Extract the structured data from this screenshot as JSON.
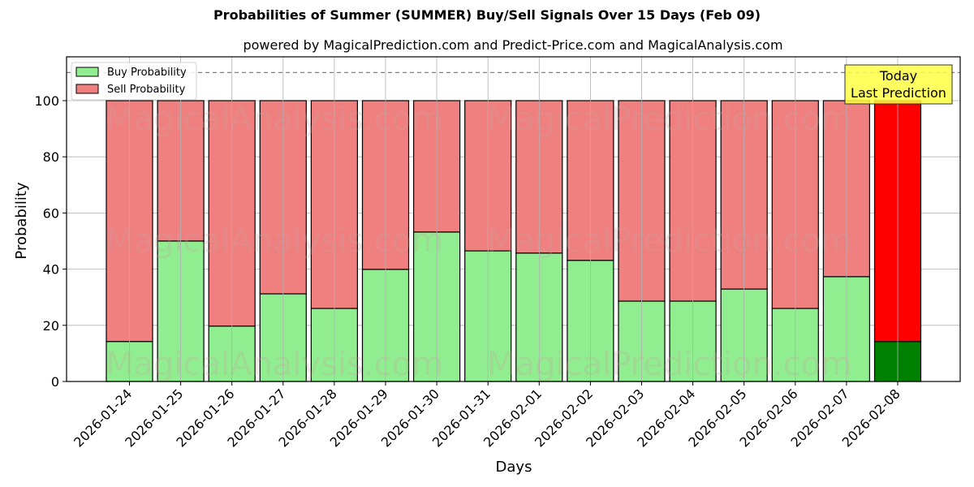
{
  "header": {
    "title": "Probabilities of Summer (SUMMER) Buy/Sell Signals Over 15 Days (Feb 09)",
    "subtitle": "powered by MagicalPrediction.com and Predict-Price.com and MagicalAnalysis.com"
  },
  "watermarks": [
    "MagicalAnalysis.com",
    "MagicalPrediction.com"
  ],
  "annotation": {
    "line1": "Today",
    "line2": "Last Prediction"
  },
  "colors": {
    "buy": "#90ee90",
    "sell": "#f08080",
    "today_buy": "#008000",
    "today_sell": "#ff0000",
    "annotation_bg": "#ffff44"
  },
  "chart_data": {
    "type": "bar",
    "stacked": true,
    "title": "Probabilities of Summer (SUMMER) Buy/Sell Signals Over 15 Days (Feb 09)",
    "subtitle": "powered by MagicalPrediction.com and Predict-Price.com and MagicalAnalysis.com",
    "xlabel": "Days",
    "ylabel": "Probability",
    "ylim": [
      0,
      115
    ],
    "yticks": [
      0,
      20,
      40,
      60,
      80,
      100
    ],
    "grid": true,
    "legend_position": "upper left",
    "reference_line": {
      "y": 110,
      "style": "dashed"
    },
    "categories": [
      "2026-01-24",
      "2026-01-25",
      "2026-01-26",
      "2026-01-27",
      "2026-01-28",
      "2026-01-29",
      "2026-01-30",
      "2026-01-31",
      "2026-02-01",
      "2026-02-02",
      "2026-02-03",
      "2026-02-04",
      "2026-02-05",
      "2026-02-06",
      "2026-02-07",
      "2026-02-08"
    ],
    "series": [
      {
        "name": "Buy Probability",
        "values": [
          14.2,
          50.0,
          19.7,
          31.2,
          26.0,
          39.9,
          53.2,
          46.5,
          45.7,
          43.1,
          28.6,
          28.6,
          32.9,
          26.0,
          37.3,
          14.2
        ]
      },
      {
        "name": "Sell Probability",
        "values": [
          85.8,
          50.0,
          80.3,
          68.8,
          74.0,
          60.1,
          46.8,
          53.5,
          54.3,
          56.9,
          71.4,
          71.4,
          67.1,
          74.0,
          62.7,
          85.8
        ]
      }
    ],
    "highlight": {
      "category": "2026-02-08",
      "label": "Today Last Prediction"
    }
  }
}
